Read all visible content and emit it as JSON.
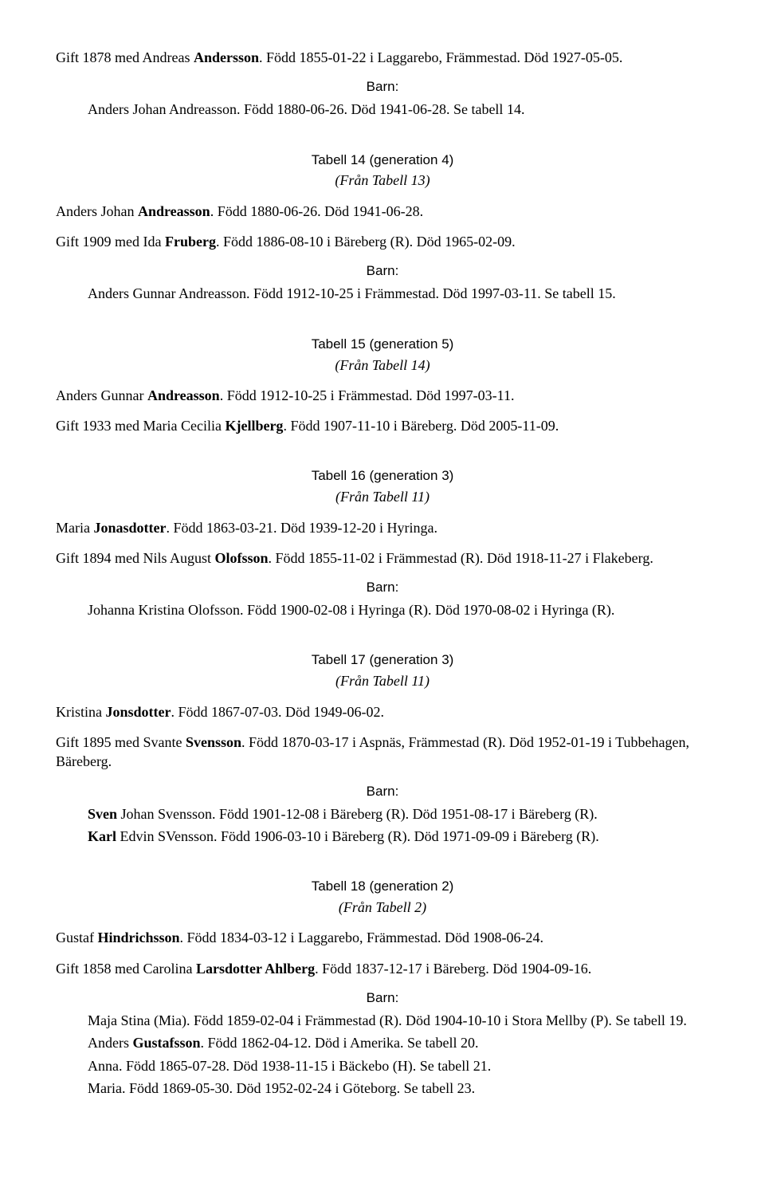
{
  "intro": {
    "marriage": "Gift 1878 med Andreas <b>Andersson</b>. Född 1855-01-22 i Laggarebo, Främmestad. Död 1927-05-05.",
    "barn_label": "Barn:",
    "children": [
      "Anders Johan Andreasson. Född 1880-06-26. Död 1941-06-28. Se tabell 14."
    ]
  },
  "sections": [
    {
      "head": "Tabell 14 (generation 4)",
      "sub": "(Från Tabell 13)",
      "person": "Anders Johan <b>Andreasson</b>. Född 1880-06-26. Död 1941-06-28.",
      "marriage": "Gift 1909 med Ida <b>Fruberg</b>. Född 1886-08-10 i Bäreberg (R). Död 1965-02-09.",
      "barn_label": "Barn:",
      "children": [
        "Anders Gunnar Andreasson. Född 1912-10-25 i Främmestad. Död 1997-03-11. Se tabell 15."
      ]
    },
    {
      "head": "Tabell 15 (generation 5)",
      "sub": "(Från Tabell 14)",
      "person": "Anders Gunnar <b>Andreasson</b>. Född 1912-10-25 i Främmestad. Död 1997-03-11.",
      "marriage": "Gift 1933 med Maria Cecilia <b>Kjellberg</b>. Född 1907-11-10 i Bäreberg. Död 2005-11-09."
    },
    {
      "head": "Tabell 16 (generation 3)",
      "sub": "(Från Tabell 11)",
      "person": "Maria <b>Jonasdotter</b>. Född 1863-03-21. Död 1939-12-20 i Hyringa.",
      "marriage": "Gift 1894 med Nils August <b>Olofsson</b>. Född 1855-11-02 i Främmestad (R). Död 1918-11-27 i Flakeberg.",
      "barn_label": "Barn:",
      "children": [
        "Johanna Kristina Olofsson. Född 1900-02-08 i Hyringa (R). Död 1970-08-02 i Hyringa (R)."
      ]
    },
    {
      "head": "Tabell 17 (generation 3)",
      "sub": "(Från Tabell 11)",
      "person": "Kristina <b>Jonsdotter</b>. Född 1867-07-03. Död 1949-06-02.",
      "marriage": "Gift 1895 med Svante <b>Svensson</b>. Född 1870-03-17 i Aspnäs, Främmestad (R). Död 1952-01-19 i Tubbehagen, Bäreberg.",
      "barn_label": "Barn:",
      "children": [
        "<b>Sven</b> Johan Svensson. Född 1901-12-08 i Bäreberg (R). Död 1951-08-17 i Bäreberg (R).",
        "<b>Karl</b> Edvin SVensson. Född 1906-03-10 i Bäreberg (R). Död 1971-09-09 i Bäreberg (R)."
      ]
    },
    {
      "head": "Tabell 18 (generation 2)",
      "sub": "(Från Tabell 2)",
      "person": "Gustaf <b>Hindrichsson</b>. Född 1834-03-12 i Laggarebo, Främmestad. Död 1908-06-24.",
      "marriage": "Gift 1858 med Carolina <b>Larsdotter Ahlberg</b>. Född 1837-12-17 i Bäreberg. Död 1904-09-16.",
      "barn_label": "Barn:",
      "children": [
        "Maja Stina (Mia). Född 1859-02-04 i Främmestad (R). Död 1904-10-10 i Stora Mellby (P). Se tabell 19.",
        "Anders <b>Gustafsson</b>. Född 1862-04-12. Död i Amerika. Se tabell 20.",
        "Anna. Född 1865-07-28. Död 1938-11-15 i Bäckebo (H). Se tabell 21.",
        "Maria. Född 1869-05-30. Död 1952-02-24 i Göteborg. Se tabell 23."
      ]
    }
  ]
}
